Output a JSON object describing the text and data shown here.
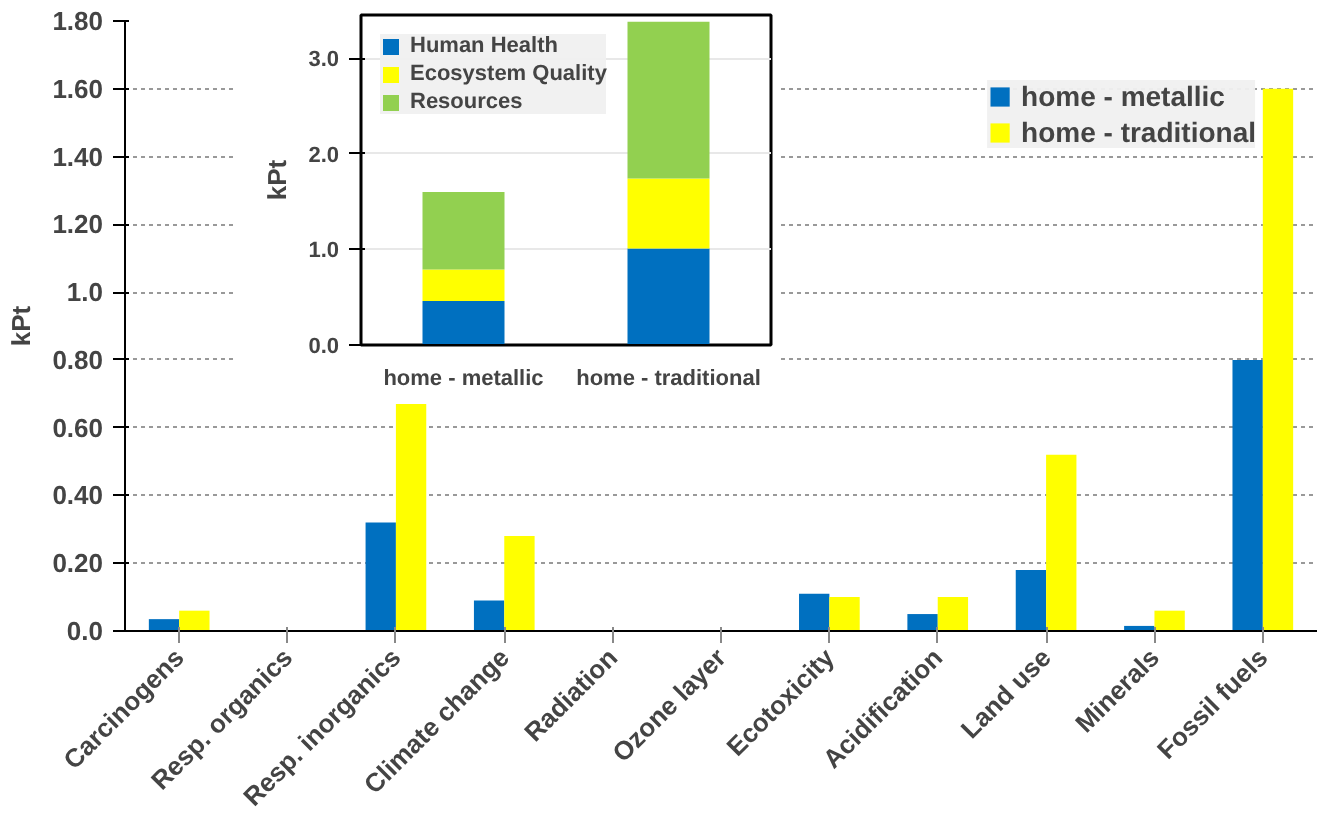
{
  "chart_data": [
    {
      "type": "bar",
      "categories": [
        "Carcinogens",
        "Resp. organics",
        "Resp. inorganics",
        "Climate change",
        "Radiation",
        "Ozone layer",
        "Ecotoxicity",
        "Acidification",
        "Land use",
        "Minerals",
        "Fossil fuels"
      ],
      "series": [
        {
          "name": "home - metallic",
          "color": "#0070c0",
          "values": [
            0.035,
            0.0,
            0.32,
            0.09,
            null,
            0.0,
            0.11,
            0.05,
            0.18,
            0.015,
            0.8
          ]
        },
        {
          "name": "home - traditional",
          "color": "#ffff00",
          "values": [
            0.06,
            null,
            0.67,
            0.28,
            null,
            null,
            0.1,
            0.1,
            0.52,
            0.06,
            1.6
          ]
        }
      ],
      "ylabel": "kPt",
      "ylim": [
        0,
        1.8
      ],
      "yticks": [
        {
          "value": 0,
          "label": "0.0"
        },
        {
          "value": 0.2,
          "label": "0.20"
        },
        {
          "value": 0.4,
          "label": "0.40"
        },
        {
          "value": 0.6,
          "label": "0.60"
        },
        {
          "value": 0.8,
          "label": "0.80"
        },
        {
          "value": 1.0,
          "label": "1.0"
        },
        {
          "value": 1.2,
          "label": "1.20"
        },
        {
          "value": 1.4,
          "label": "1.40"
        },
        {
          "value": 1.6,
          "label": "1.60"
        },
        {
          "value": 1.8,
          "label": "1.80"
        }
      ],
      "legend": "top right",
      "grid": "y"
    },
    {
      "type": "bar",
      "stacked": true,
      "categories": [
        "home - metallic",
        "home - traditional"
      ],
      "series": [
        {
          "name": "Human Health",
          "color": "#0070c0",
          "values": [
            0.46,
            1.01
          ]
        },
        {
          "name": "Ecosystem Quality",
          "color": "#ffff00",
          "values": [
            0.33,
            0.73
          ]
        },
        {
          "name": "Resources",
          "color": "#92d050",
          "values": [
            0.81,
            1.64
          ]
        }
      ],
      "ylabel": "kPt",
      "ylim": [
        0,
        3.45
      ],
      "yticks": [
        {
          "value": 0,
          "label": "0.0"
        },
        {
          "value": 1,
          "label": "1.0"
        },
        {
          "value": 2,
          "label": "2.0"
        },
        {
          "value": 3,
          "label": "3.0"
        }
      ],
      "legend": "top left",
      "grid": "y"
    }
  ]
}
